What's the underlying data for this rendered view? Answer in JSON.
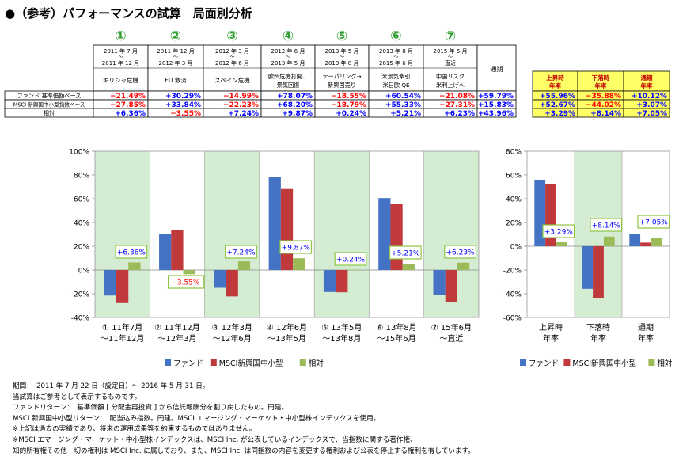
{
  "title": "●（参考）パフォーマンスの試算　局面別分析",
  "phases": [
    {
      "num": "①",
      "period": [
        "2011 年 7 月",
        "～",
        "2011 年 12 月"
      ],
      "name": [
        "ギリシャ危機"
      ],
      "axis": [
        "① 11年7月",
        "～11年12月"
      ]
    },
    {
      "num": "②",
      "period": [
        "2011 年 12 月",
        "～",
        "2012 年 3 月"
      ],
      "name": [
        "EU 救済"
      ],
      "axis": [
        "② 11年12月",
        "～12年3月"
      ]
    },
    {
      "num": "③",
      "period": [
        "2012 年 3 月",
        "～",
        "2012 年 6 月"
      ],
      "name": [
        "スペイン危機"
      ],
      "axis": [
        "③ 12年3月",
        "～12年6月"
      ]
    },
    {
      "num": "④",
      "period": [
        "2012 年 6 月",
        "～",
        "2013 年 5 月"
      ],
      "name": [
        "欧州危機打開、",
        "景気回復"
      ],
      "axis": [
        "④ 12年6月",
        "～13年5月"
      ]
    },
    {
      "num": "⑤",
      "period": [
        "2013 年 5 月",
        "～",
        "2013 年 8 月"
      ],
      "name": [
        "テーパリング→",
        "新興国売り"
      ],
      "axis": [
        "⑤ 13年5月",
        "～13年8月"
      ]
    },
    {
      "num": "⑥",
      "period": [
        "2013 年 8 月",
        "～",
        "2015 年 6 月"
      ],
      "name": [
        "米景気牽引",
        "米日欧 QE"
      ],
      "axis": [
        "⑥ 13年8月",
        "～15年6月"
      ]
    },
    {
      "num": "⑦",
      "period": [
        "2015 年 6 月",
        "～",
        "直近"
      ],
      "name": [
        "中国リスク",
        "米利上げへ"
      ],
      "axis": [
        "⑦ 15年6月",
        "～直近"
      ]
    }
  ],
  "table": {
    "total_header": "通期",
    "rows": [
      {
        "label": "ファンド 基準価額ベース",
        "values": [
          "−21.49%",
          "+30.29%",
          "−14.99%",
          "+78.07%",
          "−18.55%",
          "+60.54%",
          "−21.08%",
          "+59.79%"
        ]
      },
      {
        "label": "MSCI 新興国中小型指数ベース",
        "values": [
          "−27.85%",
          "+33.84%",
          "−22.23%",
          "+68.20%",
          "−18.79%",
          "+55.33%",
          "−27.31%",
          "+15.83%"
        ]
      },
      {
        "label": "相対",
        "values": [
          "+6.36%",
          "−3.55%",
          "+7.24%",
          "+9.87%",
          "+0.24%",
          "+5.21%",
          "+6.23%",
          "+43.96%"
        ]
      }
    ]
  },
  "yellow_table": {
    "headers": [
      [
        "上昇時",
        "年率"
      ],
      [
        "下落時",
        "年率"
      ],
      [
        "通期",
        "年率"
      ]
    ],
    "rows": [
      [
        "+55.96%",
        "−35.88%",
        "+10.12%"
      ],
      [
        "+52.67%",
        "−44.02%",
        "+3.07%"
      ],
      [
        "+3.29%",
        "+8.14%",
        "+7.05%"
      ]
    ]
  },
  "colors": {
    "fund": "#4472C4",
    "msci": "#C0393B",
    "relative": "#9BBB59",
    "shade": "#D4EDD2",
    "positive": "#0000FF",
    "negative": "#FF0000",
    "yellow": "#FFFF66",
    "callout_border": "#8DC63F"
  },
  "chart_data": [
    {
      "type": "bar",
      "categories": [
        "① 11年7月～11年12月",
        "② 11年12月～12年3月",
        "③ 12年3月～12年6月",
        "④ 12年6月～13年5月",
        "⑤ 13年5月～13年8月",
        "⑥ 13年8月～15年6月",
        "⑦ 15年6月～直近"
      ],
      "series": [
        {
          "name": "ファンド",
          "values": [
            -21.49,
            30.29,
            -14.99,
            78.07,
            -18.55,
            60.54,
            -21.08
          ]
        },
        {
          "name": "MSCI新興国中小型",
          "values": [
            -27.85,
            33.84,
            -22.23,
            68.2,
            -18.79,
            55.33,
            -27.31
          ]
        },
        {
          "name": "相対",
          "values": [
            6.36,
            -3.55,
            7.24,
            9.87,
            0.24,
            5.21,
            6.23
          ]
        }
      ],
      "data_labels": [
        "+6.36%",
        "- 3.55%",
        "+7.24%",
        "+9.87%",
        "+0.24%",
        "+5.21%",
        "+6.23%"
      ],
      "ylim": [
        -40,
        100
      ],
      "yticks": [
        "100%",
        "80%",
        "60%",
        "40%",
        "20%",
        "0%",
        "-20%",
        "-40%"
      ],
      "legend": [
        "ファンド",
        "MSCI新興国中小型",
        "相対"
      ],
      "legend_position": "bottom",
      "grid": false
    },
    {
      "type": "bar",
      "categories": [
        "上昇時年率",
        "下落時年率",
        "通期年率"
      ],
      "category_labels": [
        [
          "上昇時",
          "年率"
        ],
        [
          "下落時",
          "年率"
        ],
        [
          "通期",
          "年率"
        ]
      ],
      "series": [
        {
          "name": "ファンド",
          "values": [
            55.96,
            -35.88,
            10.12
          ]
        },
        {
          "name": "MSCI新興国中小型",
          "values": [
            52.67,
            -44.02,
            3.07
          ]
        },
        {
          "name": "相対",
          "values": [
            3.29,
            8.14,
            7.05
          ]
        }
      ],
      "data_labels": [
        "+3.29%",
        "+8.14%",
        "+7.05%"
      ],
      "ylim": [
        -60,
        80
      ],
      "yticks": [
        "80%",
        "60%",
        "40%",
        "20%",
        "0%",
        "-20%",
        "-40%",
        "-60%"
      ],
      "legend": [
        "ファンド",
        "MSCI新興国中小型",
        "相対"
      ],
      "legend_position": "bottom",
      "grid": false
    }
  ],
  "notes": [
    "期間：　2011 年 7 月 22 日（設定日）～ 2016 年 5 月 31 日。",
    "当試算はご参考として表示するものです。",
    "ファンドリターン：　基準価額 [ 分配金再投資 ] から信託報酬分を割り戻したもの。円建。",
    "MSCI 新興国中小型リターン：　配当込み指数。円建。MSCI エマージング・マーケット・中小型株インデックスを使用。",
    "※上記は過去の実績であり、将来の運用成果等を約束するものではありません。",
    "※MSCI エマージング・マーケット・中小型株インデックスは、MSCI Inc. が公表しているインデックスで、当指数に関する著作権、",
    "知的所有権その他一切の権利は MSCI Inc. に属しており、また、MSCI Inc. は同指数の内容を変更する権利および公表を停止する権利を有しています。"
  ]
}
